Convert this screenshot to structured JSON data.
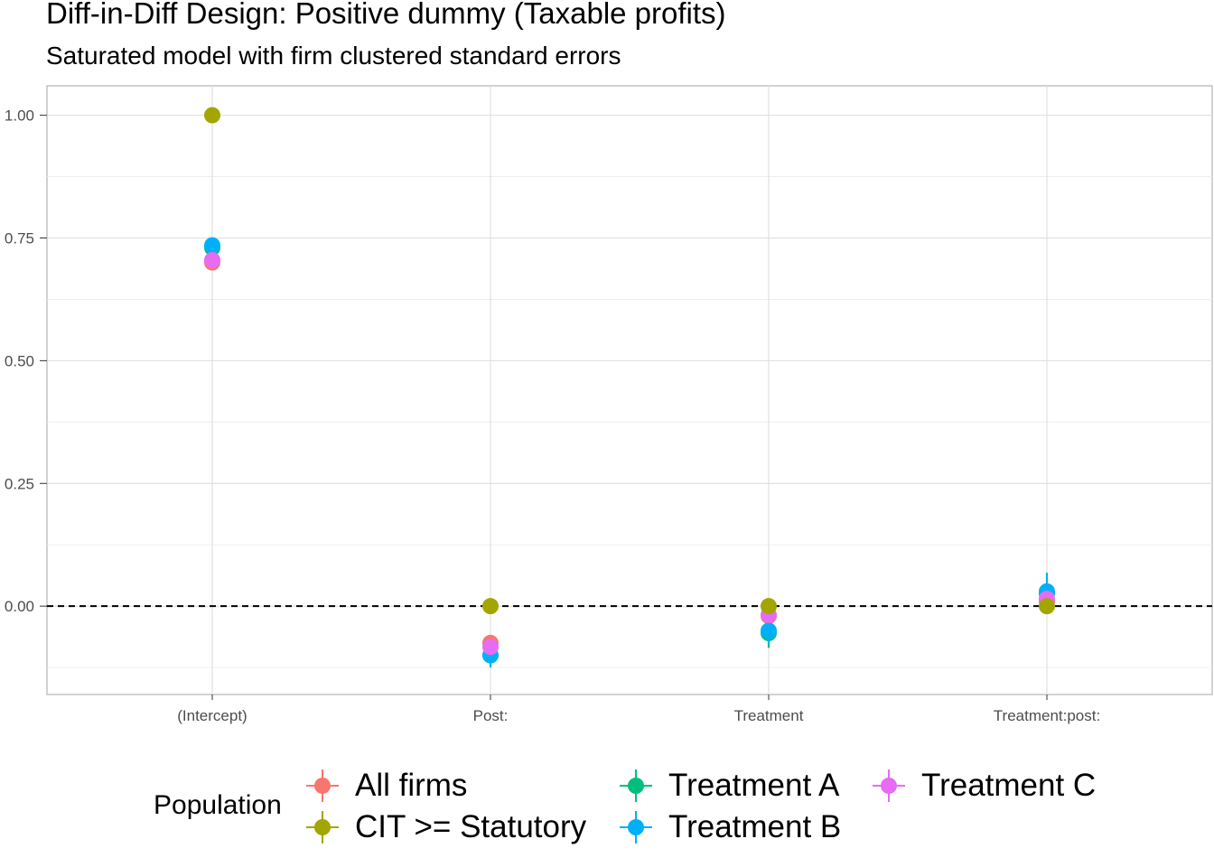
{
  "chart_data": {
    "type": "scatter",
    "title": "Diff-in-Diff Design: Positive dummy (Taxable profits)",
    "subtitle": "Saturated model with firm clustered standard errors",
    "xlabel": "",
    "ylabel": "",
    "categories": [
      "(Intercept)",
      "Post:",
      "Treatment",
      "Treatment:post:"
    ],
    "y_ticks": [
      "0.00",
      "0.25",
      "0.50",
      "0.75",
      "1.00"
    ],
    "y_tick_values": [
      0.0,
      0.25,
      0.5,
      0.75,
      1.0
    ],
    "ylim": [
      -0.18,
      1.06
    ],
    "reference_line": 0,
    "grid": true,
    "legend_title": "Population",
    "legend_position": "bottom",
    "series": [
      {
        "name": "All firms",
        "color": "#F8766D",
        "values": [
          0.7,
          -0.075,
          -0.02,
          0.01
        ],
        "lower": [
          0.69,
          -0.085,
          -0.03,
          0.0
        ],
        "upper": [
          0.71,
          -0.065,
          -0.01,
          0.02
        ]
      },
      {
        "name": "CIT >= Statutory",
        "color": "#A3A500",
        "values": [
          1.0,
          0.0,
          0.0,
          0.0
        ],
        "lower": [
          1.0,
          0.0,
          0.0,
          0.0
        ],
        "upper": [
          1.0,
          0.0,
          0.0,
          0.0
        ]
      },
      {
        "name": "Treatment A",
        "color": "#00BF7D",
        "values": [
          0.73,
          -0.1,
          -0.055,
          0.025
        ],
        "lower": [
          0.72,
          -0.115,
          -0.085,
          0.005
        ],
        "upper": [
          0.74,
          -0.085,
          -0.025,
          0.045
        ]
      },
      {
        "name": "Treatment B",
        "color": "#00B0F6",
        "values": [
          0.735,
          -0.1,
          -0.05,
          0.03
        ],
        "lower": [
          0.72,
          -0.125,
          -0.075,
          0.0
        ],
        "upper": [
          0.75,
          -0.075,
          -0.025,
          0.068
        ]
      },
      {
        "name": "Treatment C",
        "color": "#E76BF3",
        "values": [
          0.705,
          -0.083,
          -0.018,
          0.015
        ],
        "lower": [
          0.695,
          -0.093,
          -0.028,
          0.005
        ],
        "upper": [
          0.715,
          -0.073,
          -0.008,
          0.025
        ]
      }
    ]
  }
}
